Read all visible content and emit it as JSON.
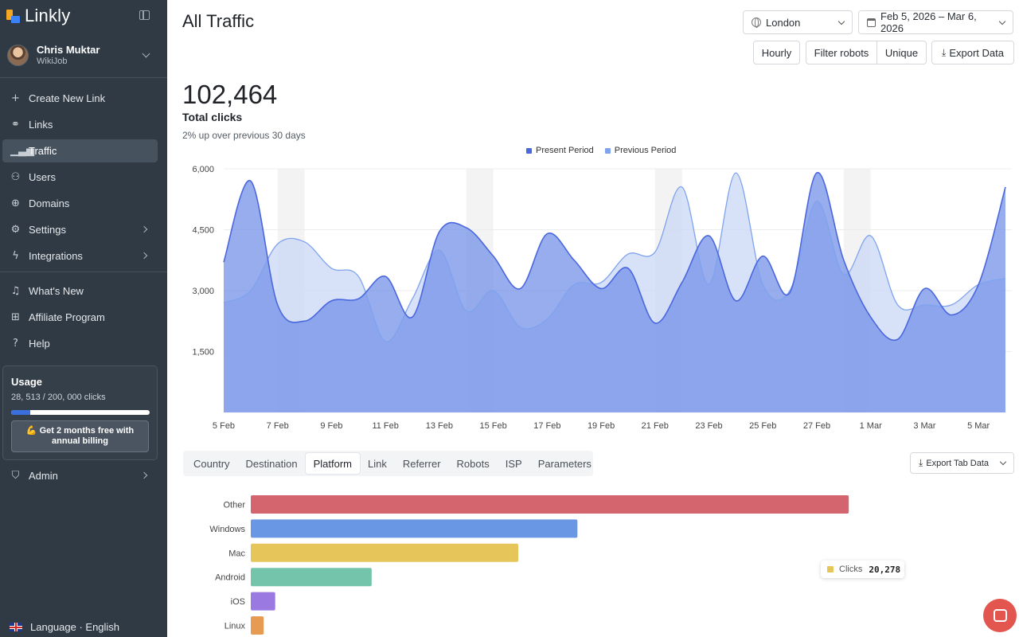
{
  "app": {
    "brand": "Linkly"
  },
  "user": {
    "name": "Chris Muktar",
    "org": "WikiJob"
  },
  "sidebar": {
    "items": [
      {
        "label": "Create New Link",
        "icon": "plus-icon"
      },
      {
        "label": "Links",
        "icon": "link-icon"
      },
      {
        "label": "Traffic",
        "icon": "bar-chart-icon",
        "active": true
      },
      {
        "label": "Users",
        "icon": "users-icon"
      },
      {
        "label": "Domains",
        "icon": "globe-icon"
      },
      {
        "label": "Settings",
        "icon": "gear-icon"
      },
      {
        "label": "Integrations",
        "icon": "bolt-icon"
      },
      {
        "label": "What's New",
        "icon": "bell-icon"
      },
      {
        "label": "Affiliate Program",
        "icon": "gift-icon"
      },
      {
        "label": "Help",
        "icon": "help-icon"
      },
      {
        "label": "Admin",
        "icon": "shield-icon"
      }
    ],
    "usage": {
      "title": "Usage",
      "count": "28, 513 / 200, 000 clicks",
      "progress": 0.14,
      "cta": "💪 Get 2 months free with annual billing"
    },
    "language": "Language · English"
  },
  "header": {
    "title": "All Traffic",
    "location": "London",
    "date_range": "Feb 5, 2026 – Mar 6, 2026",
    "buttons": {
      "hourly": "Hourly",
      "filter_robots": "Filter robots",
      "unique": "Unique",
      "export": "Export Data"
    }
  },
  "summary": {
    "total": "102,464",
    "label": "Total clicks",
    "sub": "2% up over previous 30 days"
  },
  "chart_data": [
    {
      "type": "area",
      "x": [
        "5 Feb",
        "6 Feb",
        "7 Feb",
        "8 Feb",
        "9 Feb",
        "10 Feb",
        "11 Feb",
        "12 Feb",
        "13 Feb",
        "14 Feb",
        "15 Feb",
        "16 Feb",
        "17 Feb",
        "18 Feb",
        "19 Feb",
        "20 Feb",
        "21 Feb",
        "22 Feb",
        "23 Feb",
        "24 Feb",
        "25 Feb",
        "26 Feb",
        "27 Feb",
        "28 Feb",
        "1 Mar",
        "2 Mar",
        "3 Mar",
        "4 Mar",
        "5 Mar",
        "6 Mar"
      ],
      "tick_labels": [
        "5 Feb",
        "7 Feb",
        "9 Feb",
        "11 Feb",
        "13 Feb",
        "15 Feb",
        "17 Feb",
        "19 Feb",
        "21 Feb",
        "23 Feb",
        "25 Feb",
        "27 Feb",
        "1 Mar",
        "3 Mar",
        "5 Mar"
      ],
      "series": [
        {
          "name": "Present Period",
          "color": "#4a67de",
          "values": [
            3700,
            5700,
            2650,
            2250,
            2750,
            2800,
            3350,
            2350,
            4450,
            4550,
            3850,
            3050,
            4400,
            3750,
            3050,
            3550,
            2200,
            3200,
            4350,
            2750,
            3850,
            2950,
            5900,
            3750,
            2350,
            1800,
            3050,
            2400,
            3150,
            5550
          ]
        },
        {
          "name": "Previous Period",
          "color": "#7fa3ee",
          "values": [
            2700,
            3000,
            4150,
            4200,
            3550,
            3350,
            1750,
            2800,
            4000,
            2500,
            3000,
            2100,
            2300,
            3150,
            3200,
            3900,
            3950,
            5550,
            3150,
            5900,
            3150,
            3000,
            5200,
            3400,
            4350,
            2650,
            2650,
            2650,
            3150,
            3300
          ]
        }
      ],
      "ylim": [
        0,
        6000
      ],
      "yticks": [
        1500,
        3000,
        4500,
        6000
      ],
      "ytick_labels": [
        "1,500",
        "3,000",
        "4,500",
        "6,000"
      ],
      "weekend_bands": [
        "7 Feb",
        "14 Feb",
        "21 Feb",
        "28 Feb"
      ],
      "grid": true,
      "legend": "top-center"
    },
    {
      "type": "bar",
      "orientation": "horizontal",
      "categories": [
        "Other",
        "Windows",
        "Mac",
        "Android",
        "iOS",
        "Linux"
      ],
      "values": [
        46500,
        25400,
        20800,
        9400,
        1900,
        1000
      ],
      "colors": [
        "#d4656f",
        "#6a97e3",
        "#e6c55a",
        "#74c4ac",
        "#9a7ae0",
        "#e69a52"
      ],
      "xlim": [
        0,
        65000
      ]
    }
  ],
  "tabs": [
    "Country",
    "Destination",
    "Platform",
    "Link",
    "Referrer",
    "Robots",
    "ISP",
    "Parameters"
  ],
  "active_tab": "Platform",
  "export_tab": "Export Tab Data",
  "tooltip": {
    "label": "Clicks",
    "value": "20,278"
  }
}
